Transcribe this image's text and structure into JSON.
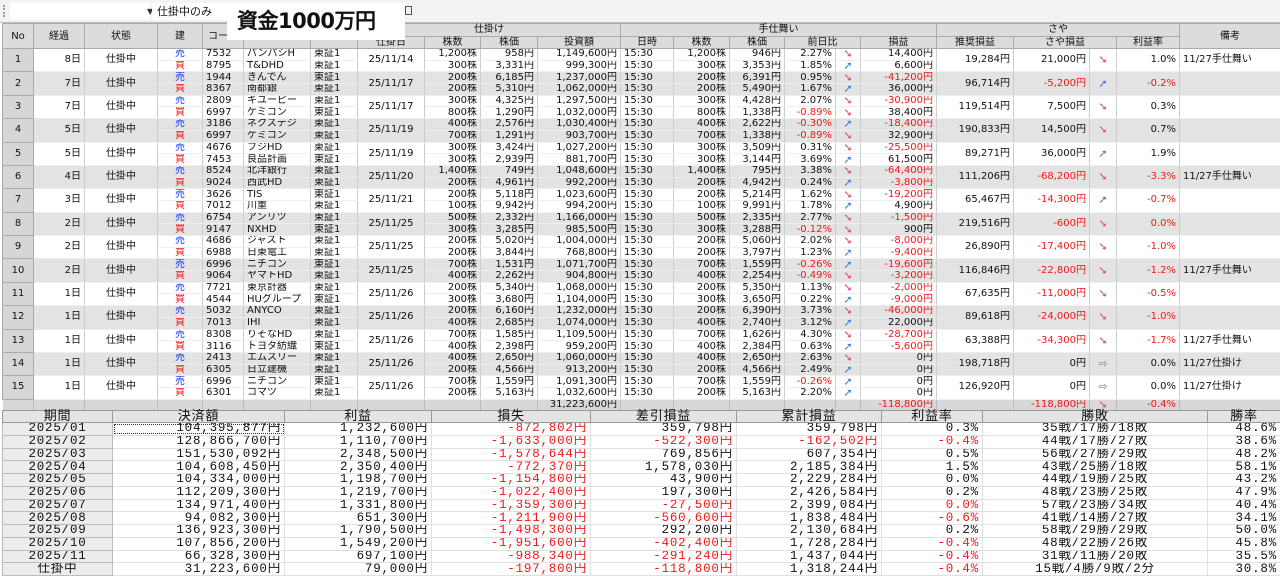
{
  "toolbar": {
    "filter_value": "仕掛中のみ",
    "overlay_title": "資金1000万円"
  },
  "headers": {
    "no": "No",
    "elapsed": "経過",
    "status": "状態",
    "side": "建",
    "code": "コード",
    "group_entry": "仕掛け",
    "entry_date": "仕掛日",
    "shares": "株数",
    "price": "株価",
    "amount": "投資額",
    "group_exit": "手仕舞い",
    "time": "日時",
    "exit_shares": "株数",
    "exit_price": "株価",
    "change": "前日比",
    "pl": "損益",
    "group_spread": "さや",
    "recommended": "推奨損益",
    "spread_pl": "さや損益",
    "rate": "利益率",
    "note": "備考"
  },
  "icons": {
    "down": "arrow-down-right",
    "up": "arrow-up-right",
    "flat": "arrow-right"
  },
  "trades": [
    {
      "no": "1",
      "days": "8日",
      "status": "仕掛中",
      "date": "25/11/14",
      "legs": [
        {
          "side": "売",
          "code": "7532",
          "name": "パンパシH",
          "market": "東証1",
          "shares": "1,200株",
          "price": "958円",
          "amount": "1,149,600円",
          "time": "15:30",
          "cshares": "1,200株",
          "cprice": "946円",
          "change": "2.27%",
          "dir": "down",
          "pl": "14,400円"
        },
        {
          "side": "買",
          "code": "8795",
          "name": "T&DHD",
          "market": "東証1",
          "shares": "300株",
          "price": "3,331円",
          "amount": "999,300円",
          "time": "15:30",
          "cshares": "300株",
          "cprice": "3,353円",
          "change": "1.85%",
          "dir": "up",
          "pl": "6,600円"
        }
      ],
      "rec": "19,284円",
      "saya": "21,000円",
      "saya_dir": "down",
      "rate": "1.0%",
      "note": "11/27手仕舞い"
    },
    {
      "no": "2",
      "days": "7日",
      "status": "仕掛中",
      "date": "25/11/17",
      "legs": [
        {
          "side": "売",
          "code": "1944",
          "name": "きんでん",
          "market": "東証1",
          "shares": "200株",
          "price": "6,185円",
          "amount": "1,237,000円",
          "time": "15:30",
          "cshares": "200株",
          "cprice": "6,391円",
          "change": "0.95%",
          "dir": "down",
          "pl": "-41,200円"
        },
        {
          "side": "買",
          "code": "8367",
          "name": "南都銀",
          "market": "東証1",
          "shares": "200株",
          "price": "5,310円",
          "amount": "1,062,000円",
          "time": "15:30",
          "cshares": "200株",
          "cprice": "5,490円",
          "change": "1.67%",
          "dir": "up",
          "pl": "36,000円"
        }
      ],
      "rec": "96,714円",
      "saya": "-5,200円",
      "saya_dir": "up",
      "rate": "-0.2%",
      "note": ""
    },
    {
      "no": "3",
      "days": "7日",
      "status": "仕掛中",
      "date": "25/11/17",
      "legs": [
        {
          "side": "売",
          "code": "2809",
          "name": "キユーピー",
          "market": "東証1",
          "shares": "300株",
          "price": "4,325円",
          "amount": "1,297,500円",
          "time": "15:30",
          "cshares": "300株",
          "cprice": "4,428円",
          "change": "2.07%",
          "dir": "down",
          "pl": "-30,900円"
        },
        {
          "side": "買",
          "code": "6997",
          "name": "ケミコン",
          "market": "東証1",
          "shares": "800株",
          "price": "1,290円",
          "amount": "1,032,000円",
          "time": "15:30",
          "cshares": "800株",
          "cprice": "1,338円",
          "change": "-0.89%",
          "dir": "down",
          "pl": "38,400円"
        }
      ],
      "rec": "119,514円",
      "saya": "7,500円",
      "saya_dir": "down",
      "rate": "0.3%",
      "note": ""
    },
    {
      "no": "4",
      "days": "5日",
      "status": "仕掛中",
      "date": "25/11/19",
      "legs": [
        {
          "side": "売",
          "code": "3186",
          "name": "ネクステジ",
          "market": "東証1",
          "shares": "400株",
          "price": "2,576円",
          "amount": "1,030,400円",
          "time": "15:30",
          "cshares": "400株",
          "cprice": "2,622円",
          "change": "-0.30%",
          "dir": "up",
          "pl": "-18,400円"
        },
        {
          "side": "買",
          "code": "6997",
          "name": "ケミコン",
          "market": "東証1",
          "shares": "700株",
          "price": "1,291円",
          "amount": "903,700円",
          "time": "15:30",
          "cshares": "700株",
          "cprice": "1,338円",
          "change": "-0.89%",
          "dir": "down",
          "pl": "32,900円"
        }
      ],
      "rec": "190,833円",
      "saya": "14,500円",
      "saya_dir": "down",
      "rate": "0.7%",
      "note": ""
    },
    {
      "no": "5",
      "days": "5日",
      "status": "仕掛中",
      "date": "25/11/19",
      "legs": [
        {
          "side": "売",
          "code": "4676",
          "name": "フジHD",
          "market": "東証1",
          "shares": "300株",
          "price": "3,424円",
          "amount": "1,027,200円",
          "time": "15:30",
          "cshares": "300株",
          "cprice": "3,509円",
          "change": "0.31%",
          "dir": "down",
          "pl": "-25,500円"
        },
        {
          "side": "買",
          "code": "7453",
          "name": "良品計画",
          "market": "東証1",
          "shares": "300株",
          "price": "2,939円",
          "amount": "881,700円",
          "time": "15:30",
          "cshares": "300株",
          "cprice": "3,144円",
          "change": "3.69%",
          "dir": "up",
          "pl": "61,500円"
        }
      ],
      "rec": "89,271円",
      "saya": "36,000円",
      "saya_dir": "up",
      "rate": "1.9%",
      "note": ""
    },
    {
      "no": "6",
      "days": "4日",
      "status": "仕掛中",
      "date": "25/11/20",
      "legs": [
        {
          "side": "売",
          "code": "8524",
          "name": "北洋銀行",
          "market": "東証1",
          "shares": "1,400株",
          "price": "749円",
          "amount": "1,048,600円",
          "time": "15:30",
          "cshares": "1,400株",
          "cprice": "795円",
          "change": "3.38%",
          "dir": "down",
          "pl": "-64,400円"
        },
        {
          "side": "買",
          "code": "9024",
          "name": "西武HD",
          "market": "東証1",
          "shares": "200株",
          "price": "4,961円",
          "amount": "992,200円",
          "time": "15:30",
          "cshares": "200株",
          "cprice": "4,942円",
          "change": "0.24%",
          "dir": "up",
          "pl": "-3,800円"
        }
      ],
      "rec": "111,206円",
      "saya": "-68,200円",
      "saya_dir": "down",
      "rate": "-3.3%",
      "note": "11/27手仕舞い"
    },
    {
      "no": "7",
      "days": "3日",
      "status": "仕掛中",
      "date": "25/11/21",
      "legs": [
        {
          "side": "売",
          "code": "3626",
          "name": "TIS",
          "market": "東証1",
          "shares": "200株",
          "price": "5,118円",
          "amount": "1,023,600円",
          "time": "15:30",
          "cshares": "200株",
          "cprice": "5,214円",
          "change": "1.62%",
          "dir": "down",
          "pl": "-19,200円"
        },
        {
          "side": "買",
          "code": "7012",
          "name": "川重",
          "market": "東証1",
          "shares": "100株",
          "price": "9,942円",
          "amount": "994,200円",
          "time": "15:30",
          "cshares": "100株",
          "cprice": "9,991円",
          "change": "1.78%",
          "dir": "up",
          "pl": "4,900円"
        }
      ],
      "rec": "65,467円",
      "saya": "-14,300円",
      "saya_dir": "up",
      "rate": "-0.7%",
      "note": ""
    },
    {
      "no": "8",
      "days": "2日",
      "status": "仕掛中",
      "date": "25/11/25",
      "legs": [
        {
          "side": "売",
          "code": "6754",
          "name": "アンリツ",
          "market": "東証1",
          "shares": "500株",
          "price": "2,332円",
          "amount": "1,166,000円",
          "time": "15:30",
          "cshares": "500株",
          "cprice": "2,335円",
          "change": "2.77%",
          "dir": "down",
          "pl": "-1,500円"
        },
        {
          "side": "買",
          "code": "9147",
          "name": "NXHD",
          "market": "東証1",
          "shares": "300株",
          "price": "3,285円",
          "amount": "985,500円",
          "time": "15:30",
          "cshares": "300株",
          "cprice": "3,288円",
          "change": "-0.12%",
          "dir": "down",
          "pl": "900円"
        }
      ],
      "rec": "219,516円",
      "saya": "-600円",
      "saya_dir": "down",
      "rate": "0.0%",
      "rate_negative": true,
      "note": ""
    },
    {
      "no": "9",
      "days": "2日",
      "status": "仕掛中",
      "date": "25/11/25",
      "legs": [
        {
          "side": "売",
          "code": "4686",
          "name": "ジャスト",
          "market": "東証1",
          "shares": "200株",
          "price": "5,020円",
          "amount": "1,004,000円",
          "time": "15:30",
          "cshares": "200株",
          "cprice": "5,060円",
          "change": "2.02%",
          "dir": "down",
          "pl": "-8,000円"
        },
        {
          "side": "買",
          "code": "6988",
          "name": "日東電工",
          "market": "東証1",
          "shares": "200株",
          "price": "3,844円",
          "amount": "768,800円",
          "time": "15:30",
          "cshares": "200株",
          "cprice": "3,797円",
          "change": "1.23%",
          "dir": "up",
          "pl": "-9,400円"
        }
      ],
      "rec": "26,890円",
      "saya": "-17,400円",
      "saya_dir": "down",
      "rate": "-1.0%",
      "note": ""
    },
    {
      "no": "10",
      "days": "2日",
      "status": "仕掛中",
      "date": "25/11/25",
      "legs": [
        {
          "side": "売",
          "code": "6996",
          "name": "ニチコン",
          "market": "東証1",
          "shares": "700株",
          "price": "1,531円",
          "amount": "1,071,700円",
          "time": "15:30",
          "cshares": "700株",
          "cprice": "1,559円",
          "change": "-0.26%",
          "dir": "up",
          "pl": "-19,600円"
        },
        {
          "side": "買",
          "code": "9064",
          "name": "ヤマトHD",
          "market": "東証1",
          "shares": "400株",
          "price": "2,262円",
          "amount": "904,800円",
          "time": "15:30",
          "cshares": "400株",
          "cprice": "2,254円",
          "change": "-0.49%",
          "dir": "down",
          "pl": "-3,200円"
        }
      ],
      "rec": "116,846円",
      "saya": "-22,800円",
      "saya_dir": "down",
      "rate": "-1.2%",
      "note": "11/27手仕舞い"
    },
    {
      "no": "11",
      "days": "1日",
      "status": "仕掛中",
      "date": "25/11/26",
      "legs": [
        {
          "side": "売",
          "code": "7721",
          "name": "東京計器",
          "market": "東証1",
          "shares": "200株",
          "price": "5,340円",
          "amount": "1,068,000円",
          "time": "15:30",
          "cshares": "200株",
          "cprice": "5,350円",
          "change": "1.13%",
          "dir": "down",
          "pl": "-2,000円"
        },
        {
          "side": "買",
          "code": "4544",
          "name": "HUグループ",
          "market": "東証1",
          "shares": "300株",
          "price": "3,680円",
          "amount": "1,104,000円",
          "time": "15:30",
          "cshares": "300株",
          "cprice": "3,650円",
          "change": "0.22%",
          "dir": "up",
          "pl": "-9,000円"
        }
      ],
      "rec": "67,635円",
      "saya": "-11,000円",
      "saya_dir": "down",
      "rate": "-0.5%",
      "note": ""
    },
    {
      "no": "12",
      "days": "1日",
      "status": "仕掛中",
      "date": "25/11/26",
      "legs": [
        {
          "side": "売",
          "code": "5032",
          "name": "ANYCO",
          "market": "東証1",
          "shares": "200株",
          "price": "6,160円",
          "amount": "1,232,000円",
          "time": "15:30",
          "cshares": "200株",
          "cprice": "6,390円",
          "change": "3.73%",
          "dir": "down",
          "pl": "-46,000円"
        },
        {
          "side": "買",
          "code": "7013",
          "name": "IHI",
          "market": "東証1",
          "shares": "400株",
          "price": "2,685円",
          "amount": "1,074,000円",
          "time": "15:30",
          "cshares": "400株",
          "cprice": "2,740円",
          "change": "3.12%",
          "dir": "up",
          "pl": "22,000円"
        }
      ],
      "rec": "89,618円",
      "saya": "-24,000円",
      "saya_dir": "down",
      "rate": "-1.0%",
      "note": ""
    },
    {
      "no": "13",
      "days": "1日",
      "status": "仕掛中",
      "date": "25/11/26",
      "legs": [
        {
          "side": "売",
          "code": "8308",
          "name": "りそなHD",
          "market": "東証1",
          "shares": "700株",
          "price": "1,585円",
          "amount": "1,109,500円",
          "time": "15:30",
          "cshares": "700株",
          "cprice": "1,626円",
          "change": "4.30%",
          "dir": "down",
          "pl": "-28,700円"
        },
        {
          "side": "買",
          "code": "3116",
          "name": "トヨタ紡織",
          "market": "東証1",
          "shares": "400株",
          "price": "2,398円",
          "amount": "959,200円",
          "time": "15:30",
          "cshares": "400株",
          "cprice": "2,384円",
          "change": "0.63%",
          "dir": "up",
          "pl": "-5,600円"
        }
      ],
      "rec": "63,388円",
      "saya": "-34,300円",
      "saya_dir": "down",
      "rate": "-1.7%",
      "note": "11/27手仕舞い"
    },
    {
      "no": "14",
      "days": "1日",
      "status": "仕掛中",
      "date": "25/11/26",
      "legs": [
        {
          "side": "売",
          "code": "2413",
          "name": "エムスリー",
          "market": "東証1",
          "shares": "400株",
          "price": "2,650円",
          "amount": "1,060,000円",
          "time": "15:30",
          "cshares": "400株",
          "cprice": "2,650円",
          "change": "2.63%",
          "dir": "down",
          "pl": "0円"
        },
        {
          "side": "買",
          "code": "6305",
          "name": "日立建機",
          "market": "東証1",
          "shares": "200株",
          "price": "4,566円",
          "amount": "913,200円",
          "time": "15:30",
          "cshares": "200株",
          "cprice": "4,566円",
          "change": "2.49%",
          "dir": "up",
          "pl": "0円"
        }
      ],
      "rec": "198,718円",
      "saya": "0円",
      "saya_dir": "flat",
      "rate": "0.0%",
      "note": "11/27仕掛け"
    },
    {
      "no": "15",
      "days": "1日",
      "status": "仕掛中",
      "date": "25/11/26",
      "legs": [
        {
          "side": "売",
          "code": "6996",
          "name": "ニチコン",
          "market": "東証1",
          "shares": "700株",
          "price": "1,559円",
          "amount": "1,091,300円",
          "time": "15:30",
          "cshares": "700株",
          "cprice": "1,559円",
          "change": "-0.26%",
          "dir": "up",
          "pl": "0円"
        },
        {
          "side": "買",
          "code": "6301",
          "name": "コマツ",
          "market": "東証1",
          "shares": "200株",
          "price": "5,163円",
          "amount": "1,032,600円",
          "time": "15:30",
          "cshares": "200株",
          "cprice": "5,163円",
          "change": "2.20%",
          "dir": "up",
          "pl": "0円"
        }
      ],
      "rec": "126,920円",
      "saya": "0円",
      "saya_dir": "flat",
      "rate": "0.0%",
      "note": "11/27仕掛け"
    }
  ],
  "totals": {
    "amount": "31,223,600円",
    "pl": "-118,800円",
    "saya": "-118,800円",
    "saya_dir": "down",
    "rate": "-0.4%"
  },
  "summary": {
    "headers": [
      "期間",
      "決済額",
      "利益",
      "損失",
      "差引損益",
      "累計損益",
      "利益率",
      "勝敗",
      "勝率"
    ],
    "rows": [
      {
        "period": "2025/01",
        "settled": "104,395,877円",
        "profit": "1,232,600円",
        "loss": "-872,802円",
        "net": "359,798円",
        "cumulative": "359,798円",
        "rate": "0.3%",
        "record": "35戦/17勝/18敗",
        "win_rate": "48.6%"
      },
      {
        "period": "2025/02",
        "settled": "128,866,700円",
        "profit": "1,110,700円",
        "loss": "-1,633,000円",
        "net": "-522,300円",
        "cumulative": "-162,502円",
        "rate": "-0.4%",
        "record": "44戦/17勝/27敗",
        "win_rate": "38.6%"
      },
      {
        "period": "2025/03",
        "settled": "151,530,092円",
        "profit": "2,348,500円",
        "loss": "-1,578,644円",
        "net": "769,856円",
        "cumulative": "607,354円",
        "rate": "0.5%",
        "record": "56戦/27勝/29敗",
        "win_rate": "48.2%"
      },
      {
        "period": "2025/04",
        "settled": "104,608,450円",
        "profit": "2,350,400円",
        "loss": "-772,370円",
        "net": "1,578,030円",
        "cumulative": "2,185,384円",
        "rate": "1.5%",
        "record": "43戦/25勝/18敗",
        "win_rate": "58.1%"
      },
      {
        "period": "2025/05",
        "settled": "104,334,000円",
        "profit": "1,198,700円",
        "loss": "-1,154,800円",
        "net": "43,900円",
        "cumulative": "2,229,284円",
        "rate": "0.0%",
        "record": "44戦/19勝/25敗",
        "win_rate": "43.2%"
      },
      {
        "period": "2025/06",
        "settled": "112,209,300円",
        "profit": "1,219,700円",
        "loss": "-1,022,400円",
        "net": "197,300円",
        "cumulative": "2,426,584円",
        "rate": "0.2%",
        "record": "48戦/23勝/25敗",
        "win_rate": "47.9%"
      },
      {
        "period": "2025/07",
        "settled": "134,971,400円",
        "profit": "1,331,800円",
        "loss": "-1,359,300円",
        "net": "-27,500円",
        "cumulative": "2,399,084円",
        "rate": "0.0%",
        "rate_negative": true,
        "record": "57戦/23勝/34敗",
        "win_rate": "40.4%"
      },
      {
        "period": "2025/08",
        "settled": "94,082,300円",
        "profit": "651,300円",
        "loss": "-1,211,900円",
        "net": "-560,600円",
        "cumulative": "1,838,484円",
        "rate": "-0.6%",
        "record": "41戦/14勝/27敗",
        "win_rate": "34.1%"
      },
      {
        "period": "2025/09",
        "settled": "136,923,300円",
        "profit": "1,790,500円",
        "loss": "-1,498,300円",
        "net": "292,200円",
        "cumulative": "2,130,684円",
        "rate": "0.2%",
        "record": "58戦/29勝/29敗",
        "win_rate": "50.0%"
      },
      {
        "period": "2025/10",
        "settled": "107,856,200円",
        "profit": "1,549,200円",
        "loss": "-1,951,600円",
        "net": "-402,400円",
        "cumulative": "1,728,284円",
        "rate": "-0.4%",
        "record": "48戦/22勝/26敗",
        "win_rate": "45.8%"
      },
      {
        "period": "2025/11",
        "settled": "66,328,300円",
        "profit": "697,100円",
        "loss": "-988,340円",
        "net": "-291,240円",
        "cumulative": "1,437,044円",
        "rate": "-0.4%",
        "record": "31戦/11勝/20敗",
        "win_rate": "35.5%"
      },
      {
        "period": "仕掛中",
        "settled": "31,223,600円",
        "profit": "79,000円",
        "loss": "-197,800円",
        "net": "-118,800円",
        "cumulative": "1,318,244円",
        "rate": "-0.4%",
        "record": "15戦/4勝/9敗/2分",
        "win_rate": "30.8%"
      }
    ]
  }
}
